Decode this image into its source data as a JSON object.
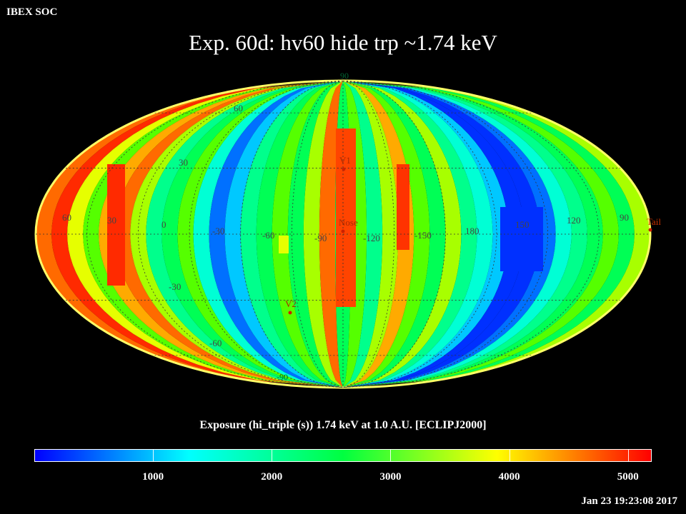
{
  "header": {
    "corner_label": "IBEX SOC",
    "title": "Exp.   60d: hv60 hide trp ~1.74 keV"
  },
  "map": {
    "projection": "mollweide",
    "grid_lon_labels": [
      "60",
      "30",
      "0",
      "-30",
      "-60",
      "-90",
      "-120",
      "-150",
      "180",
      "150",
      "120",
      "90"
    ],
    "grid_lat_labels": [
      "60",
      "30",
      "-30",
      "-60"
    ],
    "markers": [
      {
        "label": "Nose",
        "color": "#cc2200"
      },
      {
        "label": "V1",
        "color": "#cc2200"
      },
      {
        "label": "V2",
        "color": "#cc2200"
      },
      {
        "label": "Tail",
        "color": "#cc2200"
      }
    ],
    "pole_labels": {
      "north": "90",
      "south": "-90"
    }
  },
  "colorbar": {
    "title": "Exposure (hi_triple (s))  1.74 keV at 1.0 A.U. [ECLIPJ2000]",
    "min": 0,
    "max": 5200,
    "tick_values": [
      1000,
      2000,
      3000,
      4000,
      5000
    ],
    "tick_labels": [
      "1000",
      "2000",
      "3000",
      "4000",
      "5000"
    ],
    "colors": [
      "#0000ff",
      "#00ffff",
      "#00ff40",
      "#ffff00",
      "#ff0000"
    ]
  },
  "footer": {
    "timestamp": "Jan 23 19:23:08 2017"
  }
}
